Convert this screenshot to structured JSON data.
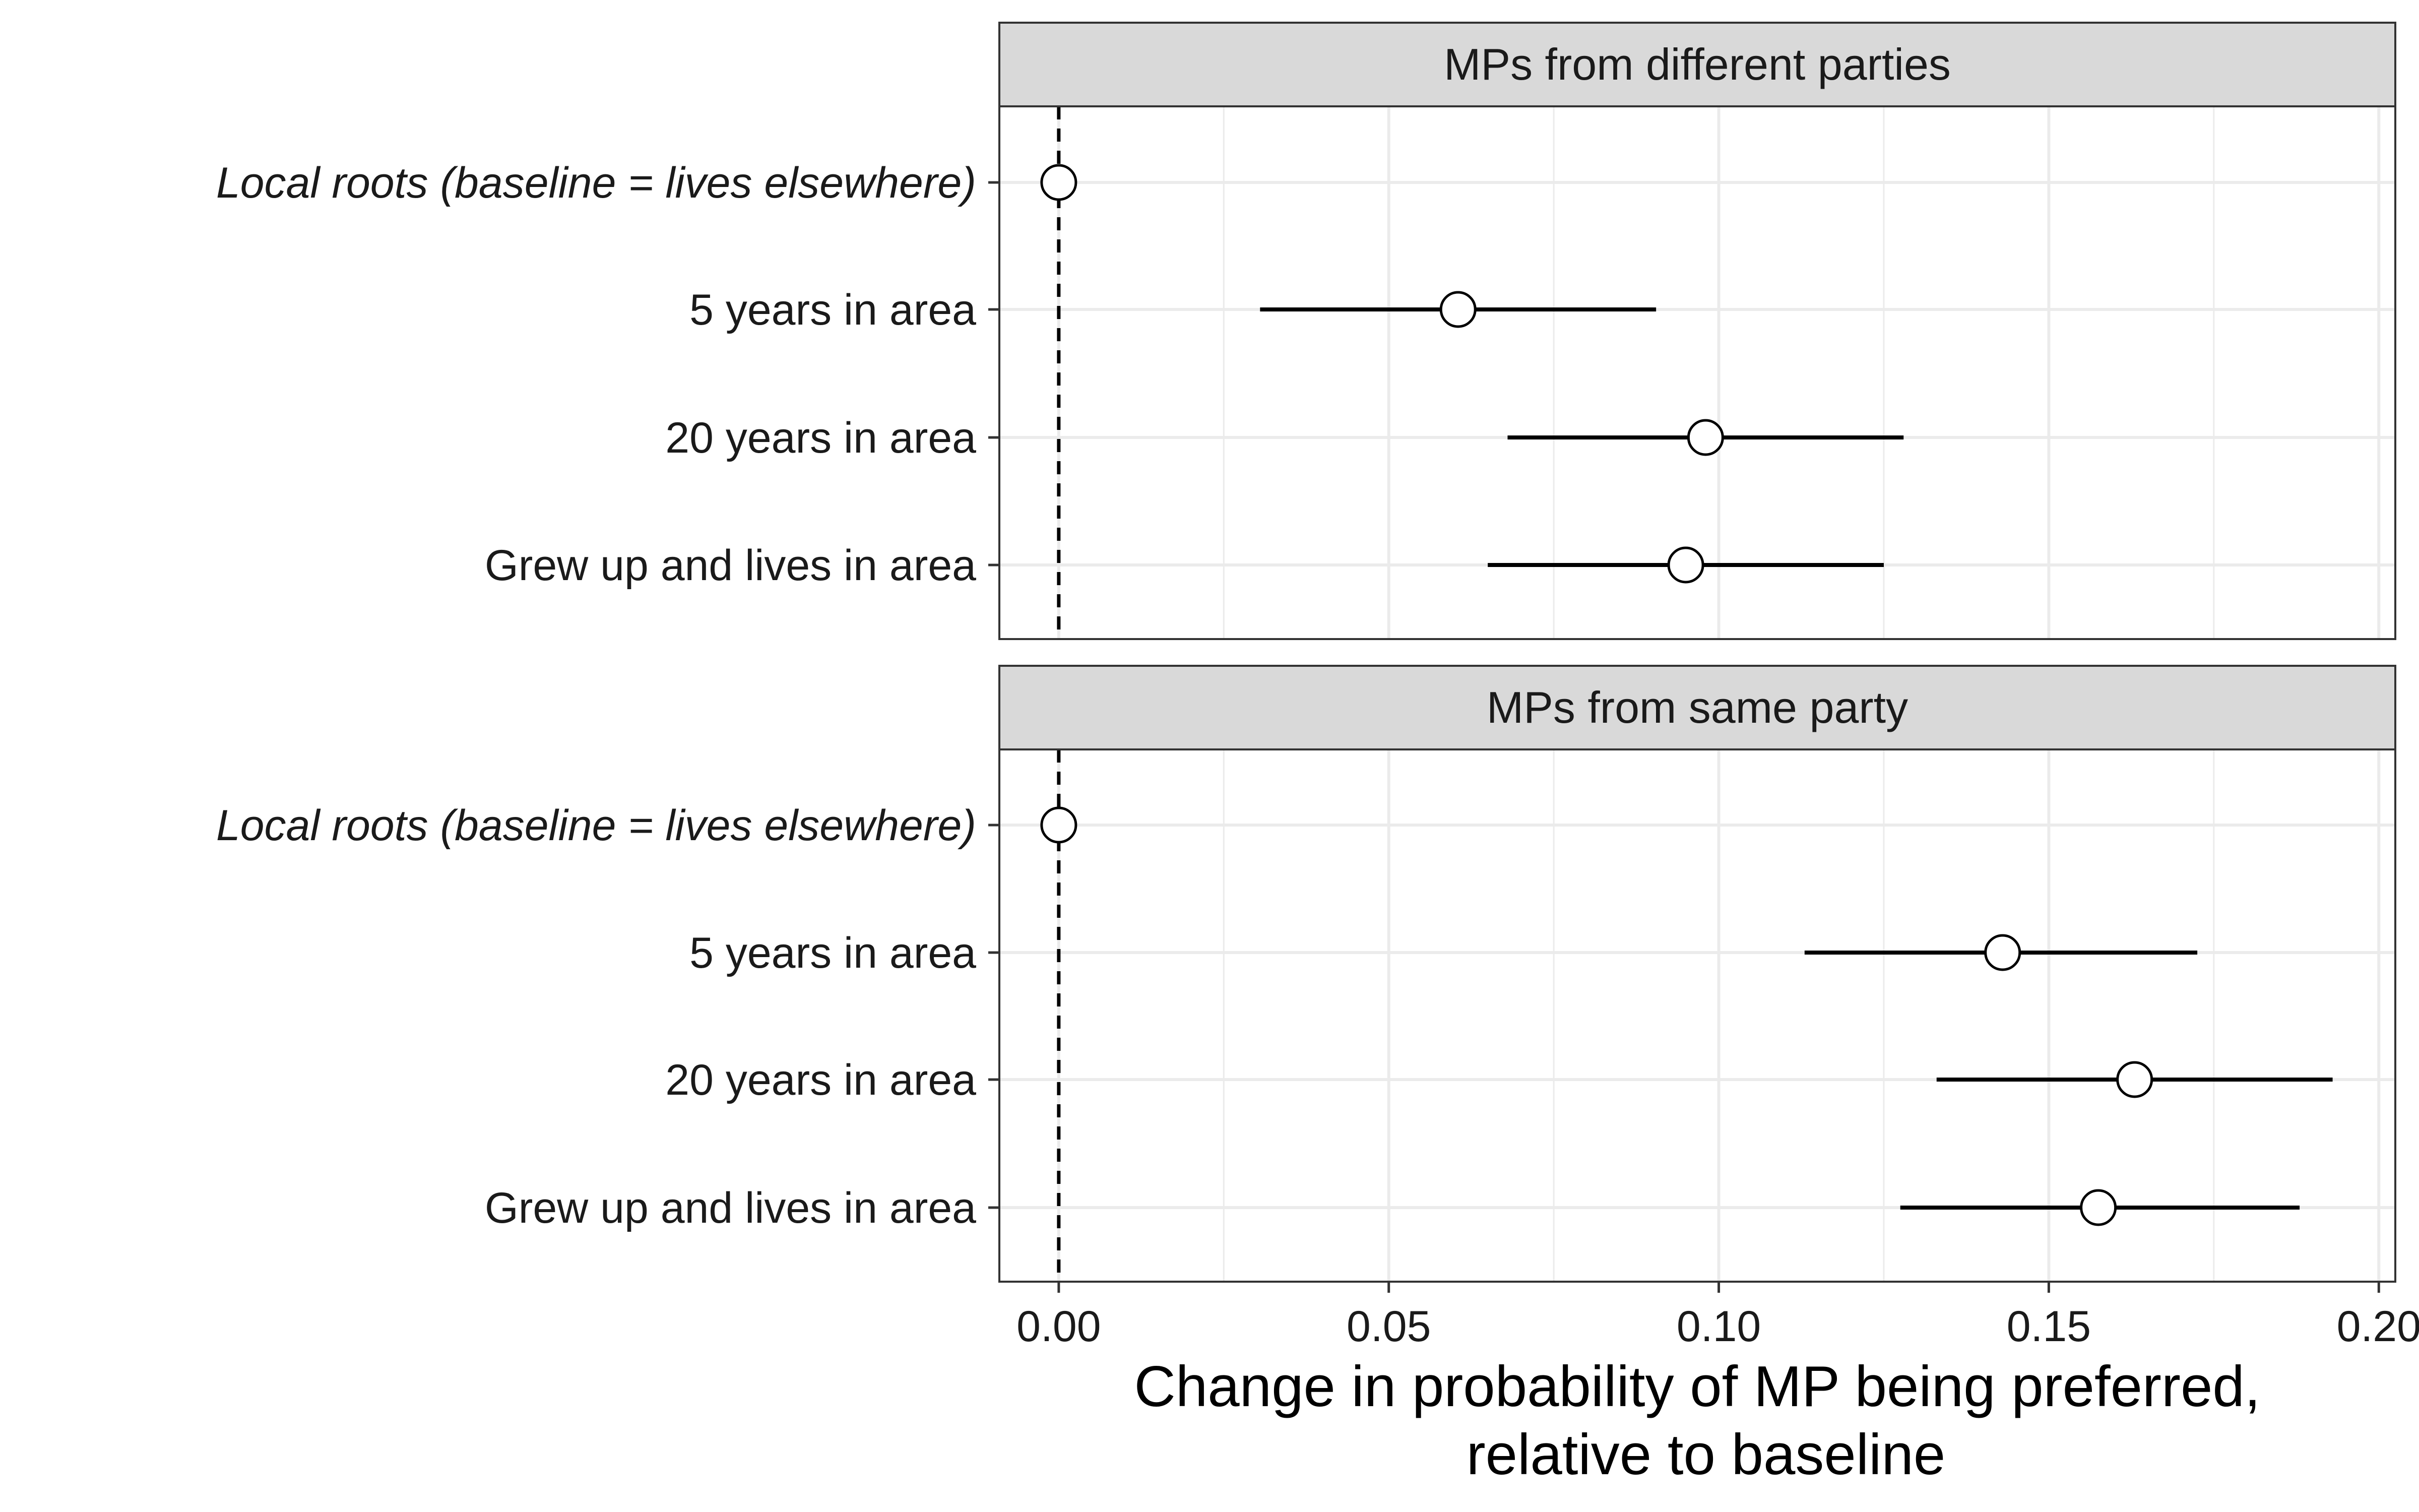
{
  "chart_data": {
    "type": "scatter",
    "subtype": "coefficient-plot-faceted",
    "xlabel_lines": [
      "Change in probability of MP being preferred,",
      "relative to baseline"
    ],
    "x_ticks": [
      "0.00",
      "0.05",
      "0.10",
      "0.15",
      "0.20"
    ],
    "x_tick_values": [
      0.0,
      0.05,
      0.1,
      0.15,
      0.2
    ],
    "xlim": [
      -0.009,
      0.2025
    ],
    "reference_line_x": 0,
    "grid": true,
    "categories": [
      {
        "label": "Local roots (baseline = lives elsewhere)",
        "italic": true
      },
      {
        "label": "5 years in area",
        "italic": false
      },
      {
        "label": "20 years in area",
        "italic": false
      },
      {
        "label": "Grew up and lives in area",
        "italic": false
      }
    ],
    "panels": [
      {
        "title": "MPs from different parties",
        "points": [
          {
            "category": "Local roots (baseline = lives elsewhere)",
            "estimate": 0.0,
            "lower": null,
            "upper": null
          },
          {
            "category": "5 years in area",
            "estimate": 0.0605,
            "lower": 0.0305,
            "upper": 0.0905
          },
          {
            "category": "20 years in area",
            "estimate": 0.098,
            "lower": 0.068,
            "upper": 0.128
          },
          {
            "category": "Grew up and lives in area",
            "estimate": 0.095,
            "lower": 0.065,
            "upper": 0.125
          }
        ]
      },
      {
        "title": "MPs from same party",
        "points": [
          {
            "category": "Local roots (baseline = lives elsewhere)",
            "estimate": 0.0,
            "lower": null,
            "upper": null
          },
          {
            "category": "5 years in area",
            "estimate": 0.143,
            "lower": 0.113,
            "upper": 0.1725
          },
          {
            "category": "20 years in area",
            "estimate": 0.163,
            "lower": 0.133,
            "upper": 0.193
          },
          {
            "category": "Grew up and lives in area",
            "estimate": 0.1575,
            "lower": 0.1275,
            "upper": 0.188
          }
        ]
      }
    ],
    "colors": {
      "strip_fill": "#d9d9d9",
      "grid": "#ebebeb",
      "panel_border": "#333333",
      "interval": "#000000",
      "point_fill": "#ffffff",
      "point_stroke": "#000000"
    }
  }
}
